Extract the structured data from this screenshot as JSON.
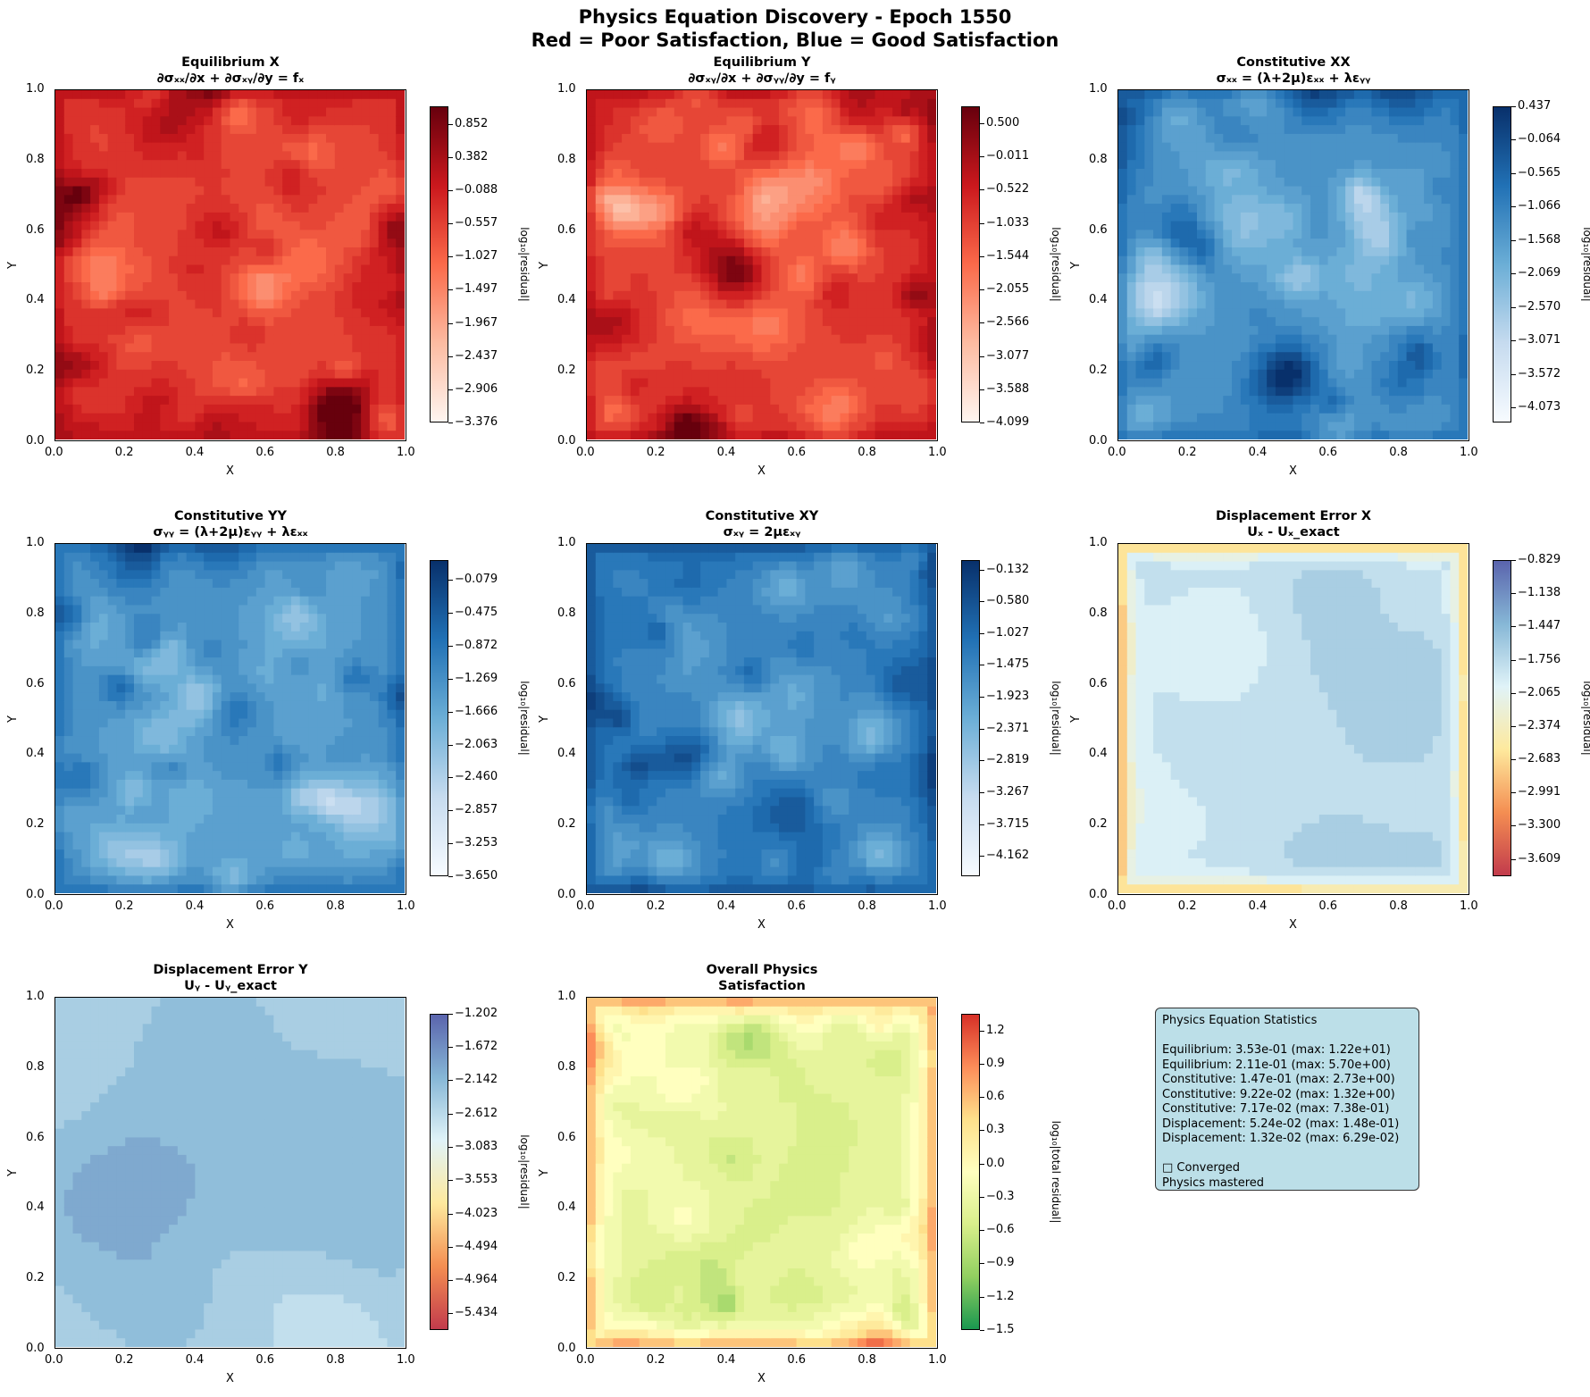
{
  "figure": {
    "title_line1": "Physics Equation Discovery - Epoch 1550",
    "title_line2": "Red = Poor Satisfaction, Blue = Good Satisfaction"
  },
  "chart_data": [
    {
      "type": "heatmap",
      "title": "Equilibrium X",
      "subtitle": "∂σₓₓ/∂x + ∂σₓᵧ/∂y = fₓ",
      "xlabel": "X",
      "ylabel": "Y",
      "xlim": [
        0,
        1
      ],
      "ylim": [
        0,
        1
      ],
      "xticks": [
        "0.0",
        "0.2",
        "0.4",
        "0.6",
        "0.8",
        "1.0"
      ],
      "yticks": [
        "0.0",
        "0.2",
        "0.4",
        "0.6",
        "0.8",
        "1.0"
      ],
      "colormap": "Reds",
      "colorbar_label": "log₁₀|residual|",
      "colorbar_range": [
        -3.376,
        1.1
      ],
      "colorbar_ticks": [
        "0.852",
        "0.382",
        "−0.088",
        "−0.557",
        "−1.027",
        "−1.497",
        "−1.967",
        "−2.437",
        "−2.906",
        "−3.376"
      ],
      "colors": [
        "#fff5f0",
        "#fcbba1",
        "#fb6a4a",
        "#cb181d",
        "#67000d"
      ],
      "field": {
        "seed": 11,
        "base": 0.62,
        "amp": 0.22,
        "edge": "high",
        "edge_strength": 0.18
      }
    },
    {
      "type": "heatmap",
      "title": "Equilibrium Y",
      "subtitle": "∂σₓᵧ/∂x + ∂σᵧᵧ/∂y = fᵧ",
      "xlabel": "X",
      "ylabel": "Y",
      "xlim": [
        0,
        1
      ],
      "ylim": [
        0,
        1
      ],
      "xticks": [
        "0.0",
        "0.2",
        "0.4",
        "0.6",
        "0.8",
        "1.0"
      ],
      "yticks": [
        "0.0",
        "0.2",
        "0.4",
        "0.6",
        "0.8",
        "1.0"
      ],
      "colormap": "Reds",
      "colorbar_label": "log₁₀|residual|",
      "colorbar_range": [
        -4.099,
        0.76
      ],
      "colorbar_ticks": [
        "0.500",
        "−0.011",
        "−0.522",
        "−1.033",
        "−1.544",
        "−2.055",
        "−2.566",
        "−3.077",
        "−3.588",
        "−4.099"
      ],
      "colors": [
        "#fff5f0",
        "#fcbba1",
        "#fb6a4a",
        "#cb181d",
        "#67000d"
      ],
      "field": {
        "seed": 23,
        "base": 0.64,
        "amp": 0.22,
        "edge": "high",
        "edge_strength": 0.18
      }
    },
    {
      "type": "heatmap",
      "title": "Constitutive XX",
      "subtitle": "σₓₓ = (λ+2μ)εₓₓ + λεᵧᵧ",
      "xlabel": "X",
      "ylabel": "Y",
      "xlim": [
        0,
        1
      ],
      "ylim": [
        0,
        1
      ],
      "xticks": [
        "0.0",
        "0.2",
        "0.4",
        "0.6",
        "0.8",
        "1.0"
      ],
      "yticks": [
        "0.0",
        "0.2",
        "0.4",
        "0.6",
        "0.8",
        "1.0"
      ],
      "colormap": "Blues",
      "colorbar_label": "log₁₀|residual|",
      "colorbar_range": [
        -4.3,
        0.437
      ],
      "colorbar_ticks": [
        "0.437",
        "−0.064",
        "−0.565",
        "−1.066",
        "−1.568",
        "−2.069",
        "−2.570",
        "−3.071",
        "−3.572",
        "−4.073"
      ],
      "colors": [
        "#f7fbff",
        "#c6dbef",
        "#6baed6",
        "#2171b5",
        "#08306b"
      ],
      "field": {
        "seed": 37,
        "base": 0.6,
        "amp": 0.2,
        "edge": "high",
        "edge_strength": 0.2
      }
    },
    {
      "type": "heatmap",
      "title": "Constitutive YY",
      "subtitle": "σᵧᵧ = (λ+2μ)εᵧᵧ + λεₓₓ",
      "xlabel": "X",
      "ylabel": "Y",
      "xlim": [
        0,
        1
      ],
      "ylim": [
        0,
        1
      ],
      "xticks": [
        "0.0",
        "0.2",
        "0.4",
        "0.6",
        "0.8",
        "1.0"
      ],
      "yticks": [
        "0.0",
        "0.2",
        "0.4",
        "0.6",
        "0.8",
        "1.0"
      ],
      "colormap": "Blues",
      "colorbar_label": "log₁₀|residual|",
      "colorbar_range": [
        -3.65,
        0.16
      ],
      "colorbar_ticks": [
        "−0.079",
        "−0.475",
        "−0.872",
        "−1.269",
        "−1.666",
        "−2.063",
        "−2.460",
        "−2.857",
        "−3.253",
        "−3.650"
      ],
      "colors": [
        "#f7fbff",
        "#c6dbef",
        "#6baed6",
        "#2171b5",
        "#08306b"
      ],
      "field": {
        "seed": 41,
        "base": 0.58,
        "amp": 0.2,
        "edge": "high",
        "edge_strength": 0.2
      }
    },
    {
      "type": "heatmap",
      "title": "Constitutive XY",
      "subtitle": "σₓᵧ = 2μεₓᵧ",
      "xlabel": "X",
      "ylabel": "Y",
      "xlim": [
        0,
        1
      ],
      "ylim": [
        0,
        1
      ],
      "xticks": [
        "0.0",
        "0.2",
        "0.4",
        "0.6",
        "0.8",
        "1.0"
      ],
      "yticks": [
        "0.0",
        "0.2",
        "0.4",
        "0.6",
        "0.8",
        "1.0"
      ],
      "colormap": "Blues",
      "colorbar_label": "log₁₀|residual|",
      "colorbar_range": [
        -4.45,
        0.0
      ],
      "colorbar_ticks": [
        "−0.132",
        "−0.580",
        "−1.027",
        "−1.475",
        "−1.923",
        "−2.371",
        "−2.819",
        "−3.267",
        "−3.715",
        "−4.162"
      ],
      "colors": [
        "#f7fbff",
        "#c6dbef",
        "#6baed6",
        "#2171b5",
        "#08306b"
      ],
      "field": {
        "seed": 53,
        "base": 0.66,
        "amp": 0.18,
        "edge": "high",
        "edge_strength": 0.22
      }
    },
    {
      "type": "heatmap",
      "title": "Displacement Error X",
      "subtitle": "Uₓ - Uₓ_exact",
      "xlabel": "X",
      "ylabel": "Y",
      "xlim": [
        0,
        1
      ],
      "ylim": [
        0,
        1
      ],
      "xticks": [
        "0.0",
        "0.2",
        "0.4",
        "0.6",
        "0.8",
        "1.0"
      ],
      "yticks": [
        "0.0",
        "0.2",
        "0.4",
        "0.6",
        "0.8",
        "1.0"
      ],
      "colormap": "RdYlBu",
      "colorbar_label": "log₁₀|residual|",
      "colorbar_range": [
        -3.77,
        -0.829
      ],
      "colorbar_ticks": [
        "−0.829",
        "−1.138",
        "−1.447",
        "−1.756",
        "−2.065",
        "−2.374",
        "−2.683",
        "−2.991",
        "−3.300",
        "−3.609"
      ],
      "colors": [
        "#c23b4c",
        "#f48e52",
        "#fee99d",
        "#e0f3f8",
        "#86b7d6",
        "#5a64ad"
      ],
      "field": {
        "seed": 67,
        "base": 0.72,
        "amp": 0.08,
        "edge": "low",
        "edge_strength": 0.5,
        "smooth": true
      }
    },
    {
      "type": "heatmap",
      "title": "Displacement Error Y",
      "subtitle": "Uᵧ - Uᵧ_exact",
      "xlabel": "X",
      "ylabel": "Y",
      "xlim": [
        0,
        1
      ],
      "ylim": [
        0,
        1
      ],
      "xticks": [
        "0.0",
        "0.2",
        "0.4",
        "0.6",
        "0.8",
        "1.0"
      ],
      "yticks": [
        "0.0",
        "0.2",
        "0.4",
        "0.6",
        "0.8",
        "1.0"
      ],
      "colormap": "RdYlBu",
      "colorbar_label": "log₁₀|residual|",
      "colorbar_range": [
        -5.67,
        -1.202
      ],
      "colorbar_ticks": [
        "−1.202",
        "−1.672",
        "−2.142",
        "−2.612",
        "−3.083",
        "−3.553",
        "−4.023",
        "−4.494",
        "−4.964",
        "−5.434"
      ],
      "colors": [
        "#c23b4c",
        "#f48e52",
        "#fee99d",
        "#e0f3f8",
        "#86b7d6",
        "#5a64ad"
      ],
      "field": {
        "seed": 79,
        "base": 0.72,
        "amp": 0.1,
        "edge": "none",
        "edge_strength": 0.0,
        "smooth": true
      }
    },
    {
      "type": "heatmap",
      "title": "Overall Physics",
      "subtitle": "Satisfaction",
      "xlabel": "X",
      "ylabel": "Y",
      "xlim": [
        0,
        1
      ],
      "ylim": [
        0,
        1
      ],
      "xticks": [
        "0.0",
        "0.2",
        "0.4",
        "0.6",
        "0.8",
        "1.0"
      ],
      "yticks": [
        "0.0",
        "0.2",
        "0.4",
        "0.6",
        "0.8",
        "1.0"
      ],
      "colormap": "RdYlGn_r",
      "colorbar_label": "log₁₀|total residual|",
      "colorbar_range": [
        -1.5,
        1.35
      ],
      "colorbar_ticks": [
        "1.2",
        "0.9",
        "0.6",
        "0.3",
        "0.0",
        "−0.3",
        "−0.6",
        "−0.9",
        "−1.2",
        "−1.5"
      ],
      "colors": [
        "#1a9850",
        "#91cf60",
        "#d9ef8b",
        "#ffffbf",
        "#fee08b",
        "#fc8d59",
        "#d73027"
      ],
      "field": {
        "seed": 97,
        "base": 0.38,
        "amp": 0.14,
        "edge": "high",
        "edge_strength": 0.45
      }
    }
  ],
  "stats": {
    "heading": "Physics Equation Statistics",
    "lines": [
      "Equilibrium: 3.53e-01 (max: 1.22e+01)",
      "Equilibrium: 2.11e-01 (max: 5.70e+00)",
      "Constitutive: 1.47e-01 (max: 2.73e+00)",
      "Constitutive: 9.22e-02 (max: 1.32e+00)",
      "Constitutive: 7.17e-02 (max: 7.38e-01)",
      "Displacement: 5.24e-02 (max: 1.48e-01)",
      "Displacement: 1.32e-02 (max: 6.29e-02)"
    ],
    "status_line1": "□ Converged",
    "status_line2": "Physics mastered"
  }
}
